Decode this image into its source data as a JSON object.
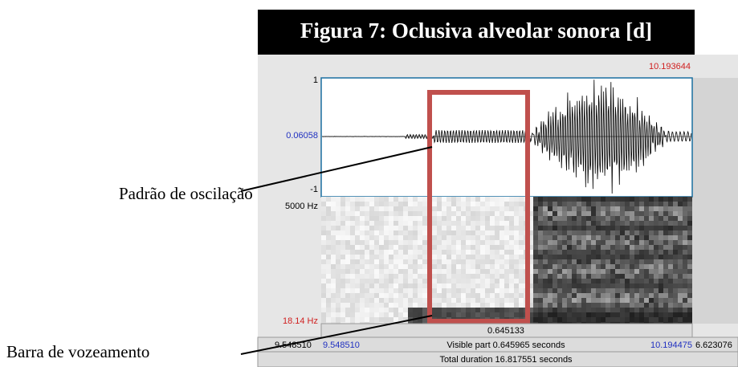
{
  "figure": {
    "title": "Figura 7: Oclusiva alveolar sonora [d]"
  },
  "annotations": [
    {
      "label": "Padrão de oscilação"
    },
    {
      "label": "Barra de vozeamento"
    }
  ],
  "praat": {
    "top_right_time": "10.193644",
    "waveform": {
      "max": "1",
      "cursor_value": "0.06058",
      "min": "-1"
    },
    "spectrogram": {
      "max_freq": "5000 Hz",
      "min_freq": "18.14 Hz"
    },
    "selection_duration": "0.645133",
    "visible_bar": {
      "left_time": "9.548510",
      "visible_start": "9.548510",
      "visible_label": "Visible part 0.645965 seconds",
      "visible_end": "10.194475",
      "right_time": "6.623076"
    },
    "total_label": "Total duration 16.817551 seconds"
  }
}
